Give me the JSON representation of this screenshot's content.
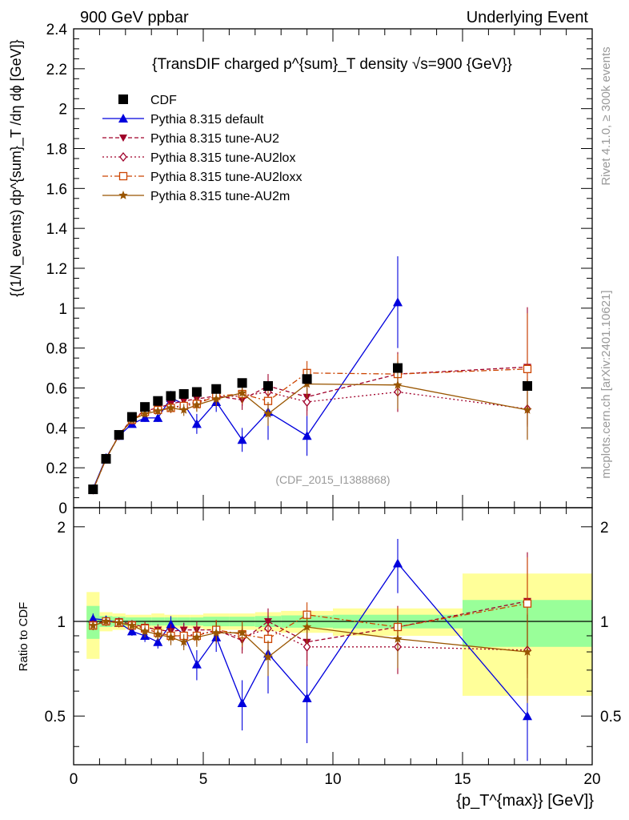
{
  "chart_data": [
    {
      "type": "scatter",
      "panel": "main",
      "header_left": "900 GeV ppbar",
      "header_right": "Underlying Event",
      "title": "{TransDIF charged p^{sum}_T density √s=900 {GeV}}",
      "ylabel": "{(1/N_events) dp^{sum}_T /dη dϕ [GeV]}",
      "ylim": [
        0,
        2.4
      ],
      "xlim": [
        0,
        20
      ],
      "yticks": [
        "0",
        "0.2",
        "0.4",
        "0.6",
        "0.8",
        "1",
        "1.2",
        "1.4",
        "1.6",
        "1.8",
        "2",
        "2.2",
        "2.4"
      ],
      "side_label_rivet": "Rivet 4.1.0, ≥ 300k events",
      "side_label_site": "mcplots.cern.ch [arXiv:2401.10621]",
      "analysis_label": "(CDF_2015_I1388868)",
      "legend": [
        "CDF",
        "Pythia 8.315 default",
        "Pythia 8.315 tune-AU2",
        "Pythia 8.315 tune-AU2lox",
        "Pythia 8.315 tune-AU2loxx",
        "Pythia 8.315 tune-AU2m"
      ],
      "data": {
        "name": "CDF",
        "x": [
          0.75,
          1.25,
          1.75,
          2.25,
          2.75,
          3.25,
          3.75,
          4.25,
          4.75,
          5.5,
          6.5,
          7.5,
          9.0,
          12.5,
          17.5
        ],
        "y": [
          0.092,
          0.245,
          0.365,
          0.455,
          0.505,
          0.535,
          0.56,
          0.57,
          0.58,
          0.595,
          0.625,
          0.61,
          0.645,
          0.7,
          0.61
        ]
      },
      "series": [
        {
          "name": "Pythia 8.315 default",
          "color": "#0000dd",
          "marker": "triangle-up",
          "dash": "",
          "y": [
            0.095,
            0.25,
            0.36,
            0.42,
            0.45,
            0.45,
            0.55,
            0.52,
            0.42,
            0.53,
            0.34,
            0.48,
            0.36,
            1.03,
            null
          ],
          "err": [
            0.008,
            0.01,
            0.012,
            0.015,
            0.02,
            0.02,
            0.035,
            0.045,
            0.05,
            0.05,
            0.06,
            0.14,
            0.1,
            0.23,
            0
          ]
        },
        {
          "name": "Pythia 8.315 tune-AU2",
          "color": "#a0002a",
          "marker": "triangle-down",
          "dash": "5,3",
          "y": [
            0.09,
            0.245,
            0.365,
            0.445,
            0.485,
            0.5,
            0.52,
            0.535,
            0.545,
            0.56,
            0.54,
            0.61,
            0.555,
            0.67,
            0.705
          ],
          "err": [
            0.008,
            0.01,
            0.012,
            0.015,
            0.018,
            0.02,
            0.025,
            0.03,
            0.035,
            0.04,
            0.05,
            0.06,
            0.07,
            0.11,
            0.3
          ]
        },
        {
          "name": "Pythia 8.315 tune-AU2lox",
          "color": "#a0002a",
          "marker": "diamond-open",
          "dash": "2,3",
          "y": [
            0.09,
            0.245,
            0.362,
            0.44,
            0.48,
            0.49,
            0.5,
            0.515,
            0.53,
            0.555,
            0.56,
            0.58,
            0.53,
            0.58,
            0.495
          ],
          "err": [
            0.008,
            0.01,
            0.012,
            0.015,
            0.018,
            0.02,
            0.025,
            0.03,
            0.035,
            0.04,
            0.05,
            0.06,
            0.07,
            0.1,
            0.15
          ]
        },
        {
          "name": "Pythia 8.315 tune-AU2loxx",
          "color": "#cc4400",
          "marker": "square-open",
          "dash": "7,3,2,3",
          "y": [
            0.09,
            0.245,
            0.362,
            0.44,
            0.48,
            0.49,
            0.5,
            0.51,
            0.52,
            0.56,
            0.57,
            0.535,
            0.675,
            0.67,
            0.695
          ],
          "err": [
            0.008,
            0.01,
            0.012,
            0.015,
            0.018,
            0.02,
            0.025,
            0.03,
            0.035,
            0.04,
            0.05,
            0.06,
            0.06,
            0.1,
            0.28
          ]
        },
        {
          "name": "Pythia 8.315 tune-AU2m",
          "color": "#995500",
          "marker": "star",
          "dash": "",
          "y": [
            0.09,
            0.245,
            0.362,
            0.44,
            0.47,
            0.485,
            0.5,
            0.49,
            0.515,
            0.545,
            0.575,
            0.47,
            0.62,
            0.615,
            0.49
          ],
          "err": [
            0.008,
            0.01,
            0.012,
            0.015,
            0.018,
            0.02,
            0.025,
            0.03,
            0.035,
            0.04,
            0.05,
            0.06,
            0.07,
            0.12,
            0.15
          ]
        }
      ]
    },
    {
      "type": "line",
      "panel": "ratio",
      "ylabel": "Ratio to CDF",
      "ylim": [
        0.35,
        2.3
      ],
      "yscale": "log",
      "yticks": [
        "0.5",
        "1",
        "2"
      ],
      "xlabel": "{p_T^{max}} [GeV]}",
      "xticks": [
        "0",
        "5",
        "10",
        "15",
        "20"
      ],
      "bin_edges": [
        0.5,
        1.0,
        1.5,
        2.0,
        2.5,
        3.0,
        3.5,
        4.0,
        4.5,
        5.0,
        6.0,
        7.0,
        8.0,
        10.0,
        15.0,
        20.0
      ],
      "band_stat": [
        0.12,
        0.04,
        0.035,
        0.03,
        0.03,
        0.03,
        0.03,
        0.03,
        0.03,
        0.035,
        0.035,
        0.04,
        0.045,
        0.05,
        0.17
      ],
      "band_total": [
        0.24,
        0.07,
        0.06,
        0.05,
        0.05,
        0.06,
        0.05,
        0.05,
        0.05,
        0.06,
        0.06,
        0.07,
        0.08,
        0.1,
        0.42
      ],
      "series": [
        {
          "name": "Pythia 8.315 default",
          "y": [
            1.02,
            1.01,
            0.99,
            0.93,
            0.9,
            0.86,
            0.98,
            0.91,
            0.73,
            0.89,
            0.55,
            0.79,
            0.57,
            1.53,
            0.5
          ],
          "err": [
            0.04,
            0.03,
            0.03,
            0.03,
            0.04,
            0.04,
            0.06,
            0.08,
            0.08,
            0.09,
            0.1,
            0.2,
            0.16,
            0.3,
            0.15
          ]
        },
        {
          "name": "Pythia 8.315 tune-AU2",
          "y": [
            0.98,
            1.0,
            1.0,
            0.98,
            0.96,
            0.94,
            0.93,
            0.94,
            0.94,
            0.94,
            0.87,
            1.0,
            0.86,
            0.96,
            1.16
          ],
          "err": [
            0.03,
            0.03,
            0.03,
            0.03,
            0.04,
            0.04,
            0.05,
            0.05,
            0.06,
            0.07,
            0.08,
            0.1,
            0.11,
            0.16,
            0.5
          ]
        },
        {
          "name": "Pythia 8.315 tune-AU2lox",
          "y": [
            0.97,
            1.0,
            0.99,
            0.97,
            0.95,
            0.92,
            0.9,
            0.9,
            0.91,
            0.93,
            0.89,
            0.95,
            0.83,
            0.83,
            0.81
          ],
          "err": [
            0.03,
            0.03,
            0.03,
            0.03,
            0.04,
            0.04,
            0.05,
            0.05,
            0.06,
            0.07,
            0.08,
            0.1,
            0.11,
            0.15,
            0.25
          ]
        },
        {
          "name": "Pythia 8.315 tune-AU2loxx",
          "y": [
            0.97,
            1.0,
            0.99,
            0.97,
            0.95,
            0.92,
            0.9,
            0.9,
            0.9,
            0.94,
            0.91,
            0.88,
            1.05,
            0.96,
            1.14
          ],
          "err": [
            0.03,
            0.03,
            0.03,
            0.03,
            0.04,
            0.04,
            0.05,
            0.05,
            0.06,
            0.07,
            0.08,
            0.1,
            0.1,
            0.15,
            0.46
          ]
        },
        {
          "name": "Pythia 8.315 tune-AU2m",
          "y": [
            0.97,
            1.0,
            0.99,
            0.97,
            0.93,
            0.91,
            0.89,
            0.86,
            0.89,
            0.92,
            0.92,
            0.77,
            0.96,
            0.88,
            0.8
          ],
          "err": [
            0.03,
            0.03,
            0.03,
            0.03,
            0.04,
            0.04,
            0.05,
            0.05,
            0.06,
            0.07,
            0.08,
            0.1,
            0.11,
            0.17,
            0.25
          ]
        }
      ]
    }
  ]
}
